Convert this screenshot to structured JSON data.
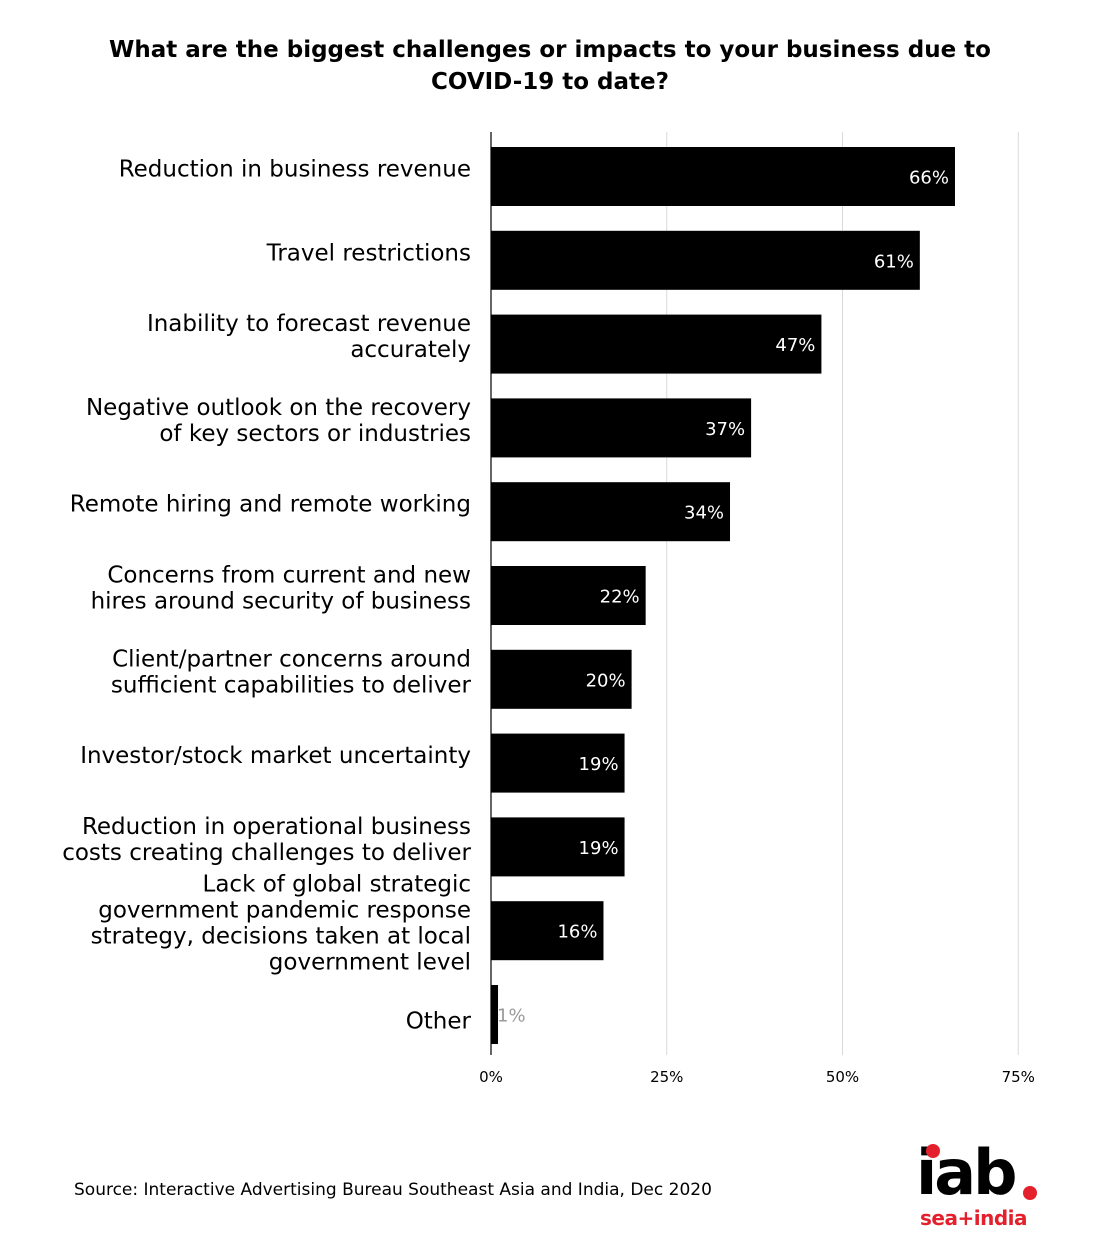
{
  "chart_data": {
    "type": "bar",
    "orientation": "horizontal",
    "title_lines": [
      "What are the biggest challenges or impacts to your business due to",
      "COVID-19 to date?"
    ],
    "categories": [
      [
        "Reduction in business revenue"
      ],
      [
        "Travel restrictions"
      ],
      [
        "Inability to forecast revenue",
        "accurately"
      ],
      [
        "Negative outlook on the recovery",
        "of key sectors or industries"
      ],
      [
        "Remote hiring and remote working"
      ],
      [
        "Concerns from current and new",
        "hires around security of business"
      ],
      [
        "Client/partner concerns around",
        "sufficient capabilities to deliver"
      ],
      [
        "Investor/stock market uncertainty"
      ],
      [
        "Reduction in operational business",
        "costs creating challenges to deliver"
      ],
      [
        "Lack of global strategic",
        "government pandemic response",
        "strategy, decisions taken at local",
        "government level"
      ],
      [
        "Other"
      ]
    ],
    "values": [
      66,
      61,
      47,
      37,
      34,
      22,
      20,
      19,
      19,
      16,
      1
    ],
    "value_labels": [
      "66%",
      "61%",
      "47%",
      "37%",
      "34%",
      "22%",
      "20%",
      "19%",
      "19%",
      "16%",
      "1%"
    ],
    "xlim": [
      0,
      75
    ],
    "xticks": [
      0,
      25,
      50,
      75
    ],
    "xtick_labels": [
      "0%",
      "25%",
      "50%",
      "75%"
    ],
    "grid": "vertical",
    "bar_color": "#000000",
    "label_color": "#ffffff",
    "small_label_color": "#9a9a9a"
  },
  "source": "Source: Interactive Advertising Bureau Southeast Asia and India, Dec 2020",
  "logo": {
    "main": "iab",
    "sub": "sea+india",
    "accent_color": "#e4202c"
  }
}
